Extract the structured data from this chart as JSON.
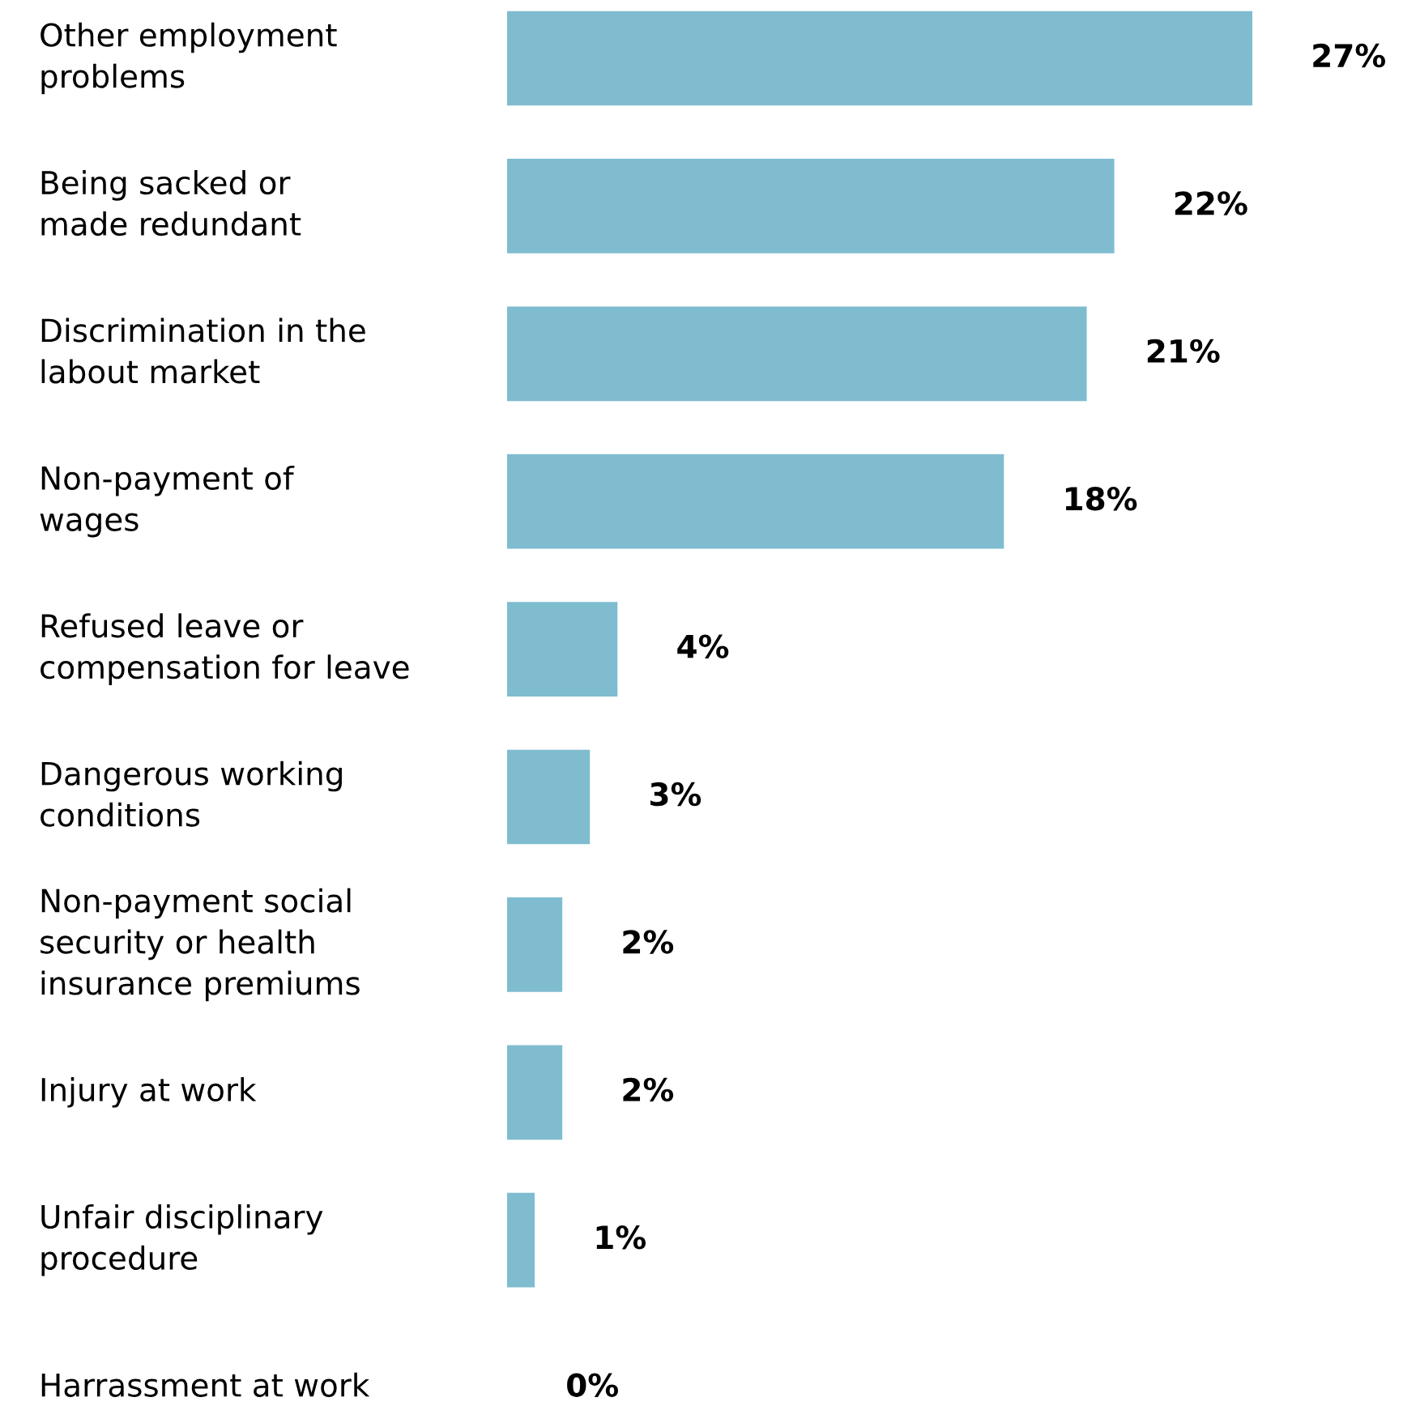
{
  "chart_data": {
    "type": "bar",
    "orientation": "horizontal",
    "categories": [
      "Other employment\nproblems",
      "Being sacked or\nmade redundant",
      "Discrimination in the\nlabout market",
      "Non-payment of\nwages",
      "Refused leave or\ncompensation for leave",
      "Dangerous working\nconditions",
      "Non-payment social\nsecurity or health\ninsurance premiums",
      "Injury at work",
      "Unfair disciplinary\nprocedure",
      "Harrassment at work"
    ],
    "values": [
      27,
      22,
      21,
      18,
      4,
      3,
      2,
      2,
      1,
      0
    ],
    "value_labels": [
      "27%",
      "22%",
      "21%",
      "18%",
      "4%",
      "3%",
      "2%",
      "2%",
      "1%",
      "0%"
    ],
    "color": "#7fbcd0"
  }
}
